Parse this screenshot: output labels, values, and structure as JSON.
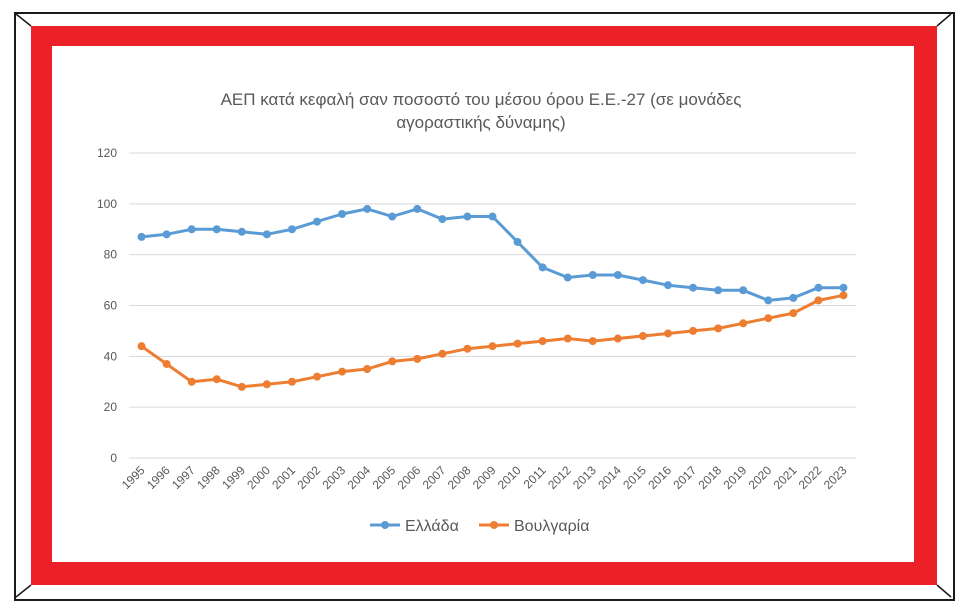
{
  "chart_data": {
    "type": "line",
    "title": "ΑΕΠ κατά κεφαλή σαν ποσοστό του μέσου όρου Ε.Ε.-27 (σε μονάδες αγοραστικής δύναμης)",
    "title_lines": [
      "ΑΕΠ κατά κεφαλή σαν ποσοστό του μέσου όρου Ε.Ε.-27 (σε μονάδες",
      "αγοραστικής δύναμης)"
    ],
    "xlabel": "",
    "ylabel": "",
    "ylim": [
      0,
      120
    ],
    "yticks": [
      "0",
      "20",
      "40",
      "60",
      "80",
      "100",
      "120"
    ],
    "grid": true,
    "legend_position": "bottom",
    "categories": [
      "1995",
      "1996",
      "1997",
      "1998",
      "1999",
      "2000",
      "2001",
      "2002",
      "2003",
      "2004",
      "2005",
      "2006",
      "2007",
      "2008",
      "2009",
      "2010",
      "2011",
      "2012",
      "2013",
      "2014",
      "2015",
      "2016",
      "2017",
      "2018",
      "2019",
      "2020",
      "2021",
      "2022",
      "2023"
    ],
    "series": [
      {
        "name": "Ελλάδα",
        "color": "#5b9bd5",
        "values": [
          87,
          88,
          90,
          90,
          89,
          88,
          90,
          93,
          96,
          98,
          95,
          98,
          94,
          95,
          95,
          85,
          75,
          71,
          72,
          72,
          70,
          68,
          67,
          66,
          66,
          62,
          63,
          67,
          67
        ]
      },
      {
        "name": "Βουλγαρία",
        "color": "#ed7d31",
        "values": [
          44,
          37,
          30,
          31,
          28,
          29,
          30,
          32,
          34,
          35,
          38,
          39,
          41,
          43,
          44,
          45,
          46,
          47,
          46,
          47,
          48,
          49,
          50,
          51,
          53,
          55,
          57,
          62,
          64
        ]
      }
    ]
  },
  "frame": {
    "border_color": "#ec2027"
  }
}
